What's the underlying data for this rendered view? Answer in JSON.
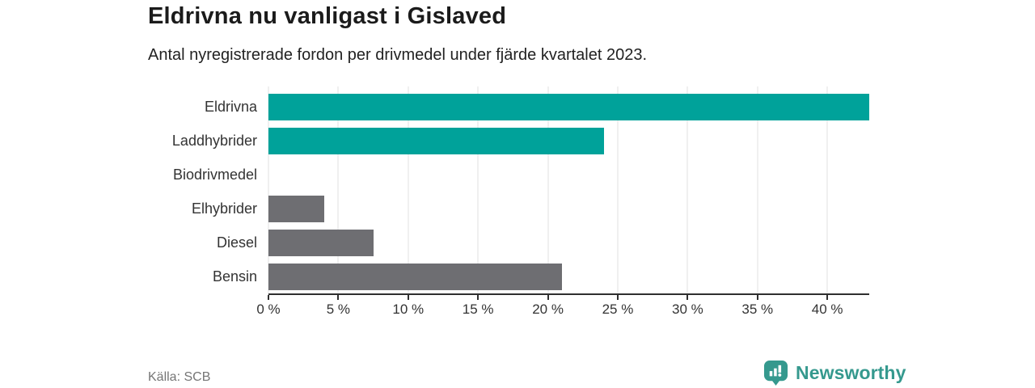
{
  "header": {
    "title": "Eldrivna nu vanligast i Gislaved",
    "subtitle": "Antal nyregistrerade fordon per drivmedel under fjärde kvartalet 2023."
  },
  "chart_data": {
    "type": "bar",
    "orientation": "horizontal",
    "title": "Eldrivna nu vanligast i Gislaved",
    "subtitle": "Antal nyregistrerade fordon per drivmedel under fjärde kvartalet 2023.",
    "categories": [
      "Eldrivna",
      "Laddhybrider",
      "Biodrivmedel",
      "Elhybrider",
      "Diesel",
      "Bensin"
    ],
    "values": [
      43,
      24,
      0,
      4,
      7.5,
      21
    ],
    "unit": "%",
    "xlabel": "",
    "ylabel": "",
    "xlim": [
      0,
      43
    ],
    "xticks": [
      0,
      5,
      10,
      15,
      20,
      25,
      30,
      35,
      40
    ],
    "xtick_suffix": " %",
    "grid": true,
    "legend": "none",
    "bar_colors": [
      "#00a29a",
      "#00a29a",
      "#6e6e72",
      "#6e6e72",
      "#6e6e72",
      "#6e6e72"
    ]
  },
  "colors": {
    "accent_teal": "#00a29a",
    "muted_gray_bar": "#6e6e72",
    "axis": "#2f2f2f",
    "grid": "#e2e2e2",
    "brand_teal": "#35998e",
    "source_text": "#757575"
  },
  "footer": {
    "source": "Källa: SCB",
    "brand": "Newsworthy"
  }
}
